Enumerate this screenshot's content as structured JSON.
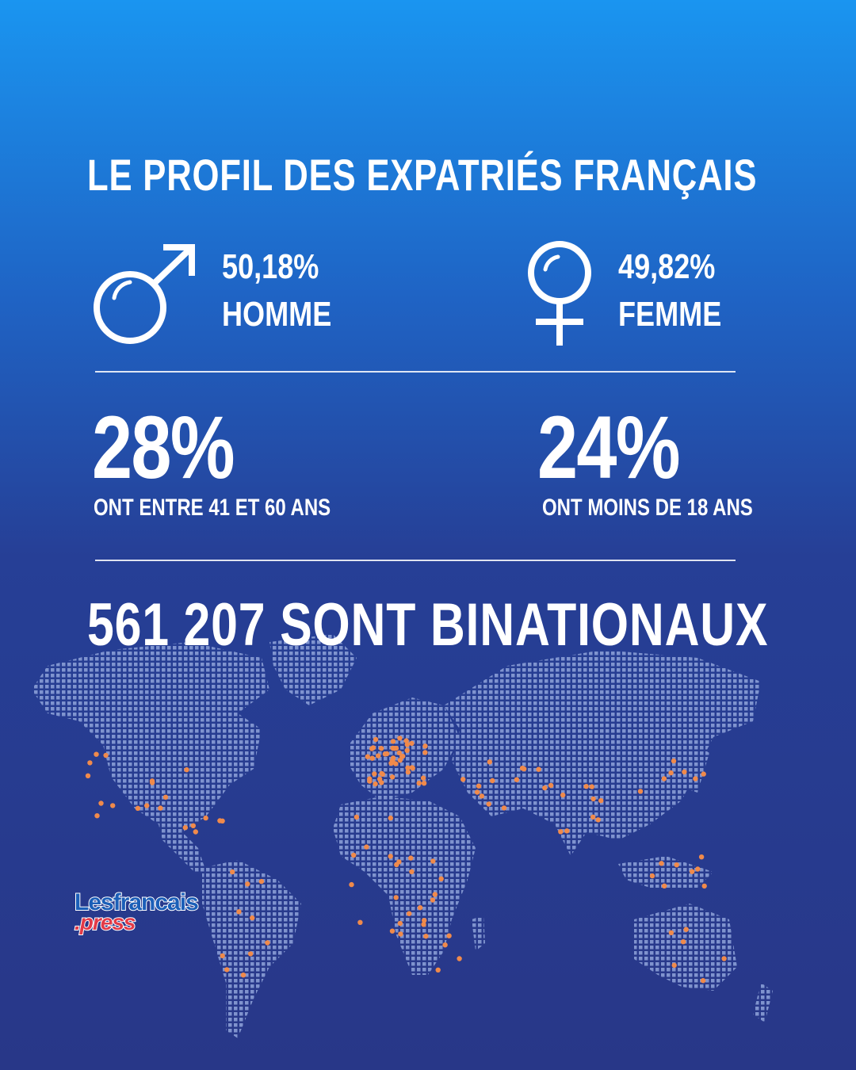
{
  "title": "LE PROFIL DES EXPATRIÉS FRANÇAIS",
  "gender": {
    "male": {
      "percent": "50,18%",
      "label": "HOMME",
      "icon": "male-symbol-icon"
    },
    "female": {
      "percent": "49,82%",
      "label": "FEMME",
      "icon": "female-symbol-icon"
    }
  },
  "age": {
    "left": {
      "percent": "28%",
      "label": "ONT ENTRE 41 ET 60 ANS"
    },
    "right": {
      "percent": "24%",
      "label": "ONT MOINS DE 18 ANS"
    }
  },
  "binationaux": "561 207 SONT BINATIONAUX",
  "logo": {
    "line1": "Lesfrancais",
    "line2": ".press"
  },
  "colors": {
    "background_top": "#1a95f0",
    "background_bottom": "#283788",
    "map_dots": "#8fa3da",
    "location_dots": "#f08a4b",
    "logo_blue": "#1b5fb8",
    "logo_red": "#e23a48"
  }
}
